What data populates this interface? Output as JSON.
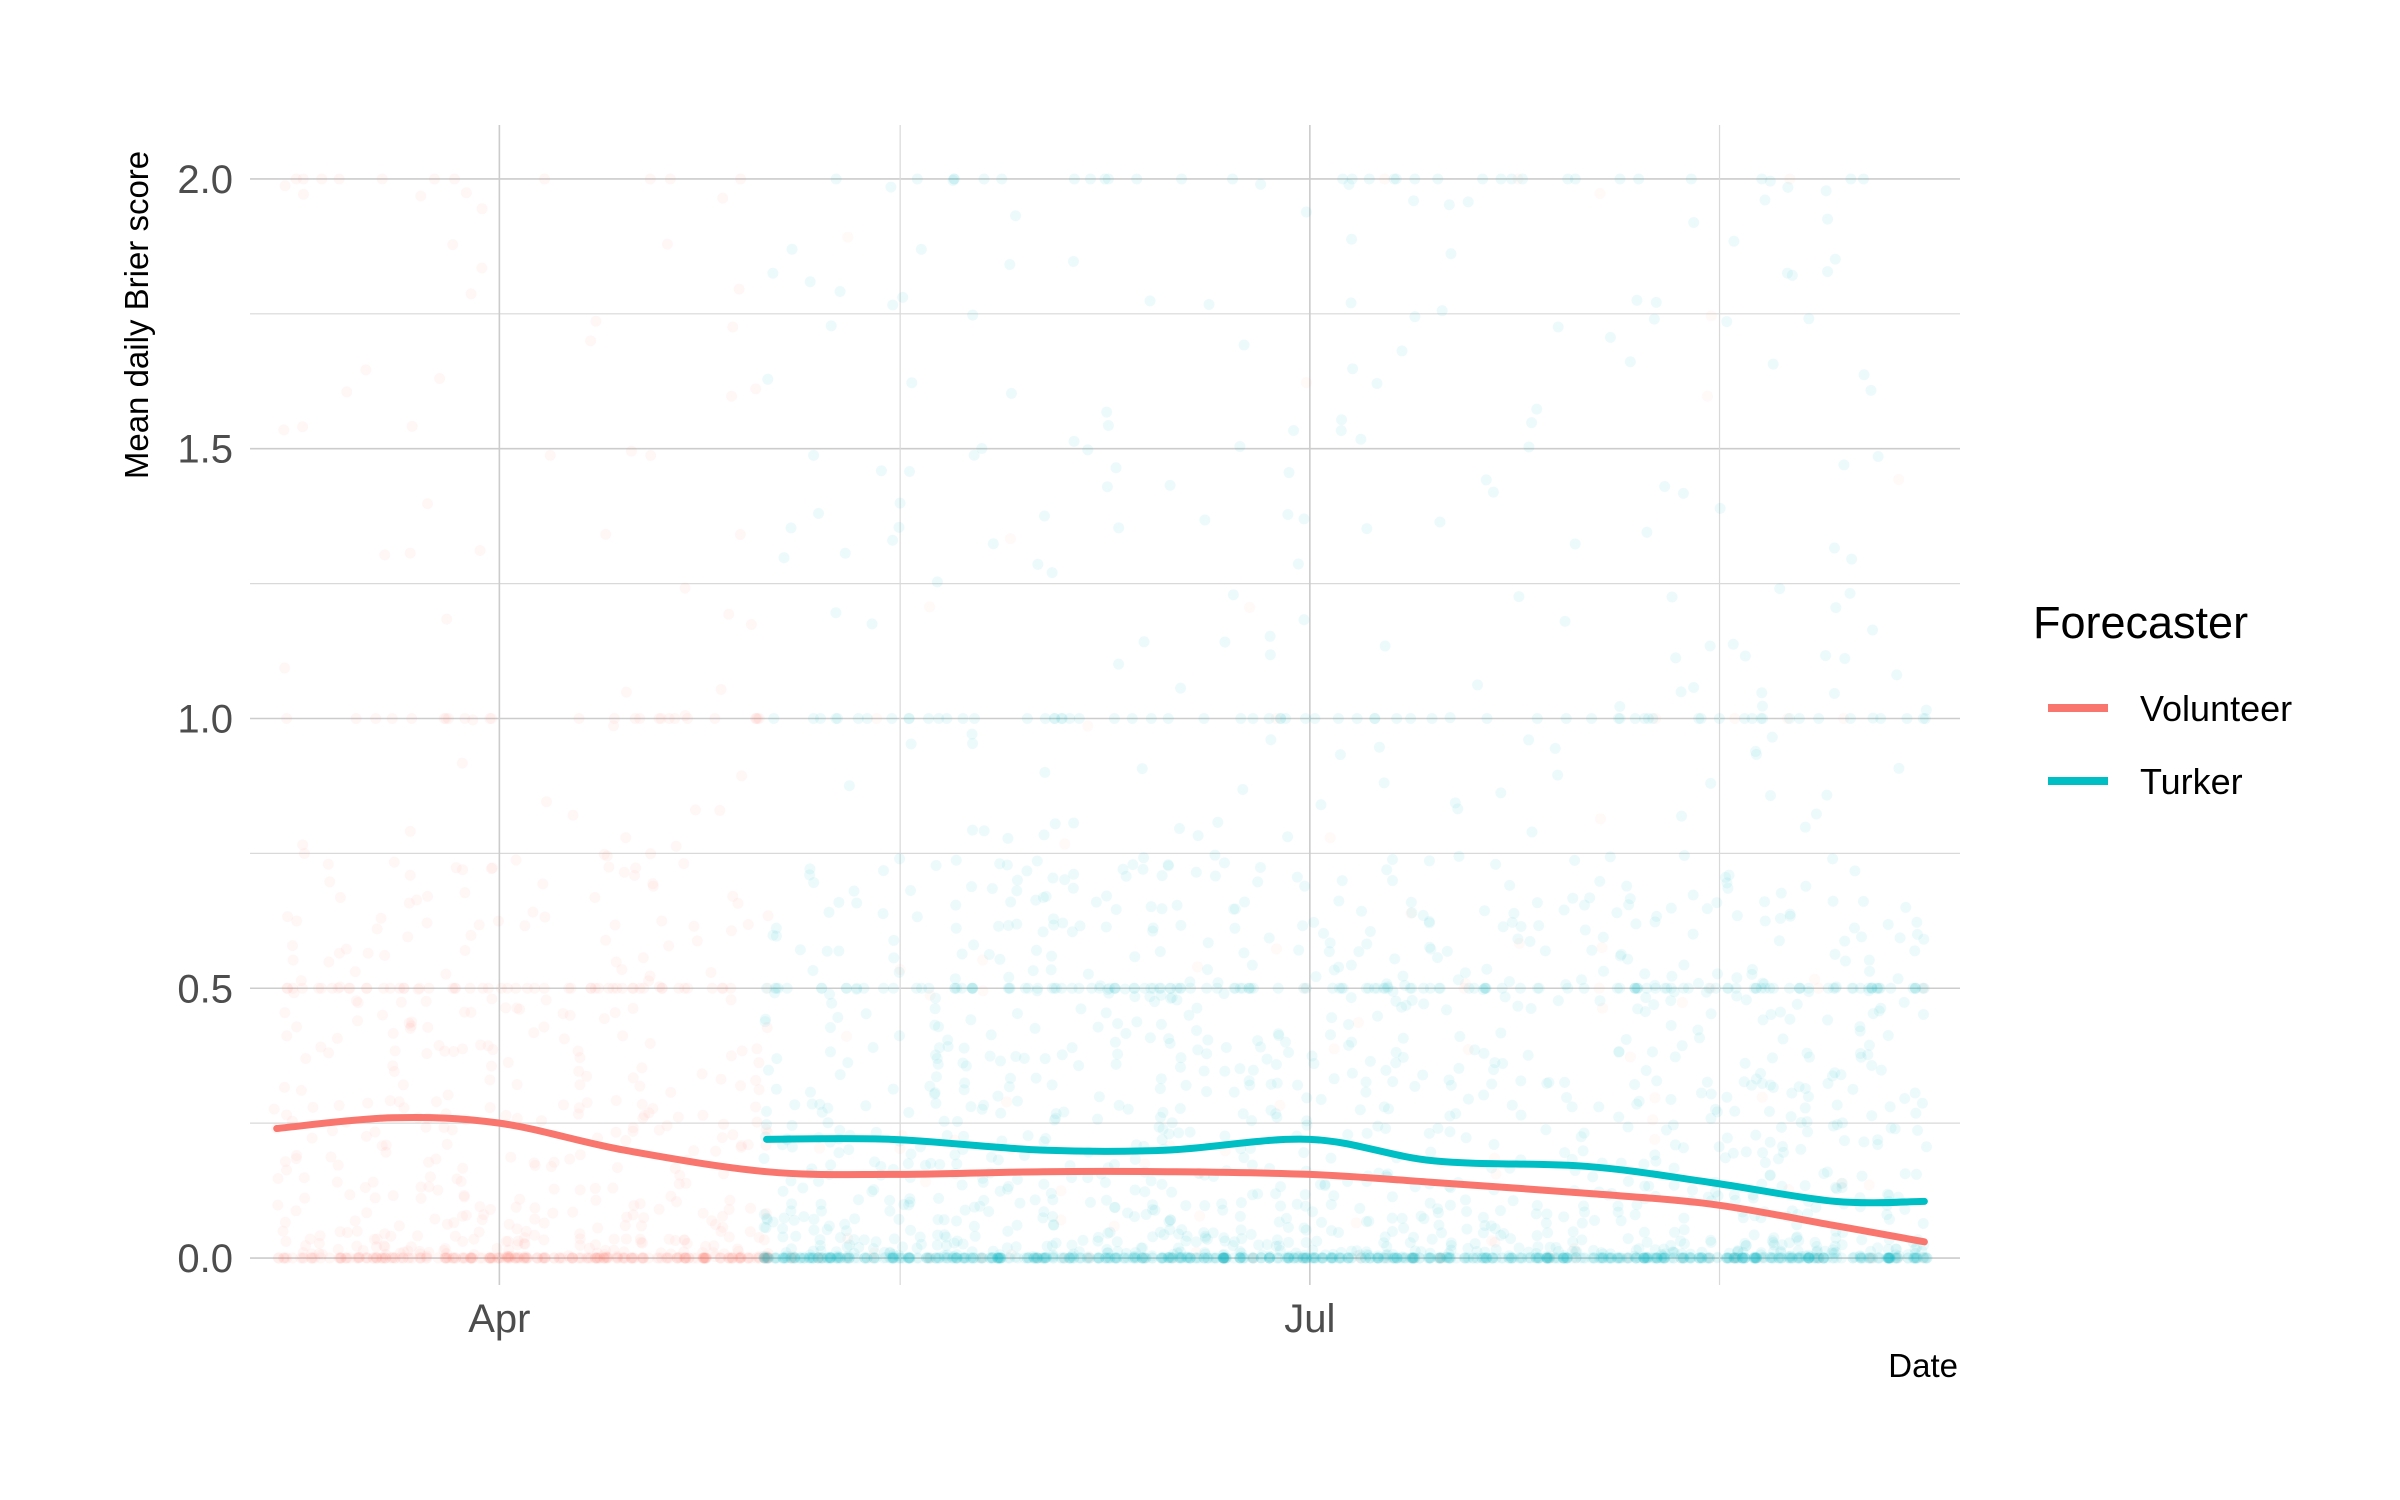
{
  "chart_data": {
    "type": "line",
    "title": "",
    "xlabel": "Date",
    "ylabel": "Mean daily Brier score",
    "x_axis": {
      "type": "date",
      "range": [
        "2020-03-04",
        "2020-09-12"
      ],
      "ticks": [
        {
          "value": "2020-04-01",
          "label": "Apr"
        },
        {
          "value": "2020-07-01",
          "label": "Jul"
        }
      ],
      "minor_ticks": [
        "2020-05-16",
        "2020-08-16"
      ]
    },
    "ylim": [
      -0.05,
      2.1
    ],
    "y_ticks": [
      {
        "value": 0.0,
        "label": "0.0"
      },
      {
        "value": 0.5,
        "label": "0.5"
      },
      {
        "value": 1.0,
        "label": "1.0"
      },
      {
        "value": 1.5,
        "label": "1.5"
      },
      {
        "value": 2.0,
        "label": "2.0"
      }
    ],
    "y_minor_ticks": [
      0.25,
      0.75,
      1.25,
      1.75
    ],
    "grid": true,
    "legend": {
      "title": "Forecaster",
      "position": "right",
      "entries": [
        {
          "label": "Volunteer",
          "color": "#F8766D"
        },
        {
          "label": "Turker",
          "color": "#00BFC4"
        }
      ]
    },
    "series": [
      {
        "name": "Volunteer",
        "color": "#F8766D",
        "smooth": [
          {
            "x": "2020-03-07",
            "y": 0.24
          },
          {
            "x": "2020-03-20",
            "y": 0.26
          },
          {
            "x": "2020-04-01",
            "y": 0.25
          },
          {
            "x": "2020-04-15",
            "y": 0.2
          },
          {
            "x": "2020-05-01",
            "y": 0.16
          },
          {
            "x": "2020-05-15",
            "y": 0.155
          },
          {
            "x": "2020-06-01",
            "y": 0.16
          },
          {
            "x": "2020-06-15",
            "y": 0.16
          },
          {
            "x": "2020-07-01",
            "y": 0.155
          },
          {
            "x": "2020-07-15",
            "y": 0.14
          },
          {
            "x": "2020-08-01",
            "y": 0.12
          },
          {
            "x": "2020-08-15",
            "y": 0.1
          },
          {
            "x": "2020-08-29",
            "y": 0.06
          },
          {
            "x": "2020-09-08",
            "y": 0.03
          }
        ],
        "raw_points": {
          "x_range": [
            "2020-03-07",
            "2020-05-01"
          ],
          "x_range_sparse": [
            "2020-05-01",
            "2020-09-08"
          ],
          "y_range": [
            0,
            2.0
          ],
          "cluster_levels": [
            0,
            0.5,
            1.0
          ],
          "opacity": "very low"
        }
      },
      {
        "name": "Turker",
        "color": "#00BFC4",
        "smooth": [
          {
            "x": "2020-05-01",
            "y": 0.22
          },
          {
            "x": "2020-05-15",
            "y": 0.22
          },
          {
            "x": "2020-06-01",
            "y": 0.2
          },
          {
            "x": "2020-06-15",
            "y": 0.2
          },
          {
            "x": "2020-07-01",
            "y": 0.22
          },
          {
            "x": "2020-07-15",
            "y": 0.18
          },
          {
            "x": "2020-08-01",
            "y": 0.17
          },
          {
            "x": "2020-08-15",
            "y": 0.14
          },
          {
            "x": "2020-08-29",
            "y": 0.105
          },
          {
            "x": "2020-09-08",
            "y": 0.105
          }
        ],
        "raw_points": {
          "x_range": [
            "2020-05-01",
            "2020-09-08"
          ],
          "y_range": [
            0,
            2.0
          ],
          "cluster_levels": [
            0,
            0.5,
            1.0
          ],
          "opacity": "low"
        }
      }
    ]
  }
}
